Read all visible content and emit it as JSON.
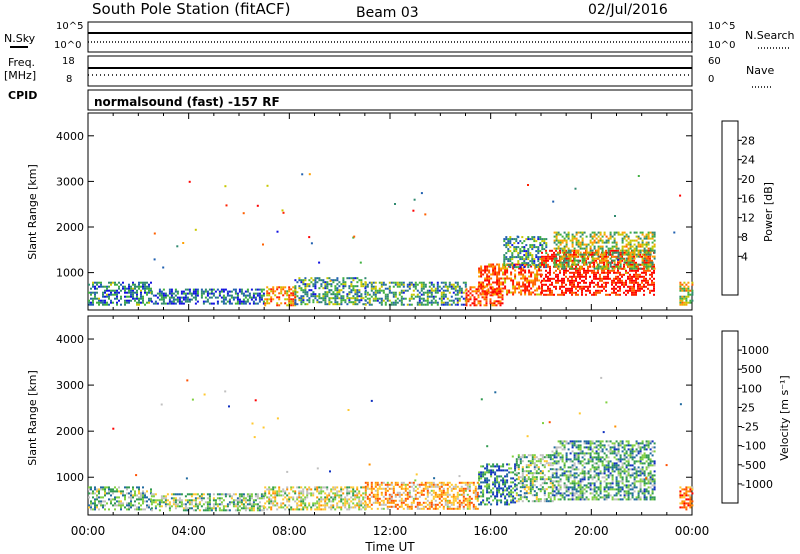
{
  "header": {
    "station": "South Pole Station (fitACF)",
    "beam": "Beam 03",
    "date": "02/Jul/2016"
  },
  "mode_label": "normalsound (fast) -157 RF",
  "side_labels": {
    "nsky": "N.Sky",
    "nsearch": "N.Search",
    "freq": "Freq.",
    "freq_unit": "[MHz]",
    "cpid": "CPID",
    "nave": "Nave"
  },
  "noise_panel": {
    "left_ticks": [
      "10^5",
      "10^0"
    ],
    "right_ticks": [
      "10^5",
      "10^0"
    ]
  },
  "freq_panel": {
    "left_ticks": [
      "18",
      "8"
    ],
    "right_ticks": [
      "60",
      "0"
    ]
  },
  "colors": {
    "power_scale": [
      "#1010e0",
      "#2060b0",
      "#308a70",
      "#40b040",
      "#c8c800",
      "#ffa000",
      "#ff6000",
      "#ff2000",
      "#ff0000"
    ],
    "velocity_scale": [
      "#ff0000",
      "#ff5000",
      "#ff9000",
      "#ffc830",
      "#c0c0c0",
      "#80d040",
      "#309a50",
      "#206aa0",
      "#1030c0"
    ]
  },
  "chart_data": [
    {
      "type": "heatmap",
      "quantity": "power",
      "xlabel": "",
      "ylabel": "Slant Range [km]",
      "colorbar_label": "Power [dB]",
      "colorbar_ticks": [
        "28",
        "24",
        "20",
        "16",
        "12",
        "8",
        "4"
      ],
      "y_ticks": [
        "4000",
        "3000",
        "2000",
        "1000"
      ],
      "x_ticks": [
        "00:00",
        "04:00",
        "08:00",
        "12:00",
        "16:00",
        "20:00",
        "00:00"
      ],
      "xlim": [
        0,
        24
      ],
      "ylim": [
        180,
        4500
      ],
      "regions": [
        {
          "t": [
            0,
            2.5
          ],
          "r": [
            300,
            800
          ],
          "level": 0.25
        },
        {
          "t": [
            2.5,
            7
          ],
          "r": [
            300,
            650
          ],
          "level": 0.2
        },
        {
          "t": [
            7,
            8.2
          ],
          "r": [
            300,
            700
          ],
          "level": 0.65
        },
        {
          "t": [
            8.2,
            11
          ],
          "r": [
            300,
            900
          ],
          "level": 0.3
        },
        {
          "t": [
            11,
            15
          ],
          "r": [
            300,
            800
          ],
          "level": 0.3
        },
        {
          "t": [
            15,
            16.5
          ],
          "r": [
            300,
            700
          ],
          "level": 0.8
        },
        {
          "t": [
            15.5,
            18
          ],
          "r": [
            500,
            1200
          ],
          "level": 0.75
        },
        {
          "t": [
            16.5,
            18.2
          ],
          "r": [
            1100,
            1800
          ],
          "level": 0.3
        },
        {
          "t": [
            18,
            22.5
          ],
          "r": [
            500,
            1500
          ],
          "level": 0.9
        },
        {
          "t": [
            18.5,
            22.5
          ],
          "r": [
            1100,
            1900
          ],
          "level": 0.45
        },
        {
          "t": [
            23.5,
            24
          ],
          "r": [
            300,
            800
          ],
          "level": 0.5
        }
      ]
    },
    {
      "type": "heatmap",
      "quantity": "velocity",
      "xlabel": "Time UT",
      "ylabel": "Slant Range [km]",
      "colorbar_label": "Velocity [m s⁻¹]",
      "colorbar_ticks": [
        "1000",
        "500",
        "100",
        "25",
        "-25",
        "-100",
        "-500",
        "-1000"
      ],
      "y_ticks": [
        "4000",
        "3000",
        "2000",
        "1000"
      ],
      "x_ticks": [
        "00:00",
        "04:00",
        "08:00",
        "12:00",
        "16:00",
        "20:00",
        "00:00"
      ],
      "xlim": [
        0,
        24
      ],
      "ylim": [
        180,
        4500
      ],
      "regions": [
        {
          "t": [
            0,
            2.5
          ],
          "r": [
            300,
            800
          ],
          "level": 0.65
        },
        {
          "t": [
            2.5,
            7
          ],
          "r": [
            300,
            650
          ],
          "level": 0.6
        },
        {
          "t": [
            7,
            11
          ],
          "r": [
            300,
            800
          ],
          "level": 0.5
        },
        {
          "t": [
            11,
            15.5
          ],
          "r": [
            300,
            900
          ],
          "level": 0.35
        },
        {
          "t": [
            15.5,
            17
          ],
          "r": [
            400,
            1300
          ],
          "level": 0.8
        },
        {
          "t": [
            17,
            18.5
          ],
          "r": [
            500,
            1500
          ],
          "level": 0.6
        },
        {
          "t": [
            18.5,
            22.5
          ],
          "r": [
            500,
            1800
          ],
          "level": 0.7
        },
        {
          "t": [
            23.5,
            24
          ],
          "r": [
            300,
            800
          ],
          "level": 0.25
        }
      ]
    }
  ]
}
